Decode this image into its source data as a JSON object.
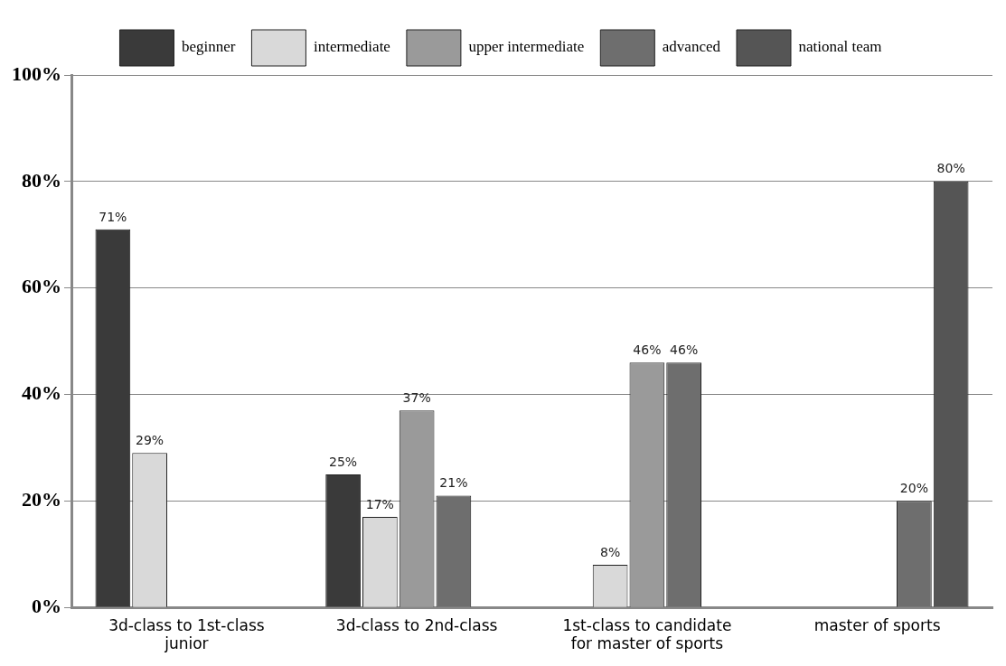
{
  "chart_data": {
    "type": "bar",
    "categories": [
      "3d-class to 1st-class junior",
      "3d-class to 2nd-class",
      "1st-class to candidate for master of sports",
      "master of sports"
    ],
    "series": [
      {
        "name": "beginner",
        "color": "#3a3a3a",
        "values": [
          71,
          25,
          null,
          null
        ],
        "value_labels": [
          "71%",
          "25%",
          null,
          null
        ]
      },
      {
        "name": "intermediate",
        "color": "#d9d9d9",
        "values": [
          29,
          17,
          8,
          null
        ],
        "value_labels": [
          "29%",
          "17%",
          "8%",
          null
        ]
      },
      {
        "name": "upper intermediate",
        "color": "#9a9a9a",
        "values": [
          null,
          37,
          46,
          null
        ],
        "value_labels": [
          null,
          "37%",
          "46%",
          null
        ]
      },
      {
        "name": "advanced",
        "color": "#6e6e6e",
        "values": [
          null,
          21,
          46,
          20
        ],
        "value_labels": [
          null,
          "21%",
          "46%",
          "20%"
        ]
      },
      {
        "name": "national team",
        "color": "#555555",
        "values": [
          null,
          null,
          null,
          80
        ],
        "value_labels": [
          null,
          null,
          null,
          "80%"
        ]
      }
    ],
    "ylim": [
      0,
      100
    ],
    "yticks": [
      {
        "value": 0,
        "label": "0%"
      },
      {
        "value": 20,
        "label": "20%"
      },
      {
        "value": 40,
        "label": "40%"
      },
      {
        "value": 60,
        "label": "60%"
      },
      {
        "value": 80,
        "label": "80%"
      },
      {
        "value": 100,
        "label": "100%"
      }
    ],
    "grid": "y",
    "legend": "top"
  }
}
